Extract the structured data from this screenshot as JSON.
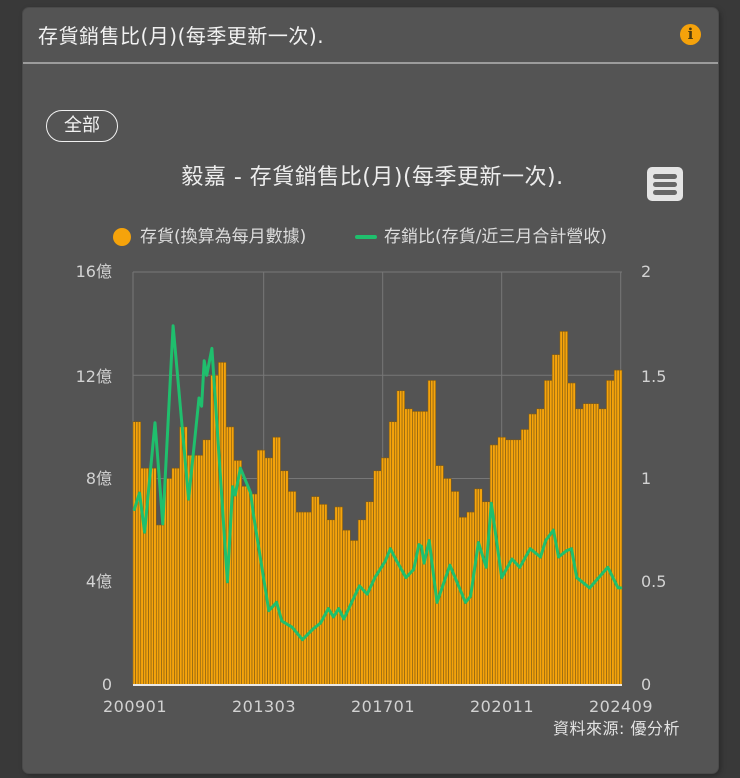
{
  "panel": {
    "title": "存貨銷售比(月)(每季更新一次).",
    "info_icon": "info-icon"
  },
  "filter": {
    "label": "全部"
  },
  "menu": {
    "icon": "hamburger-menu-icon"
  },
  "colors": {
    "panel_bg": "#545454",
    "page_bg": "#393939",
    "bar": "#f5a30b",
    "bar_edge": "#7d5a16",
    "line": "#1fbf6d",
    "info": "#f5a20b",
    "grid": "#777777",
    "axis": "#e8e8e8"
  },
  "source": "資料來源: 優分析",
  "chart_data": {
    "type": "bar+line",
    "title": "毅嘉 - 存貨銷售比(月)(每季更新一次).",
    "legend": [
      {
        "name": "存貨(換算為每月數據)",
        "marker": "circle",
        "color": "#f5a30b"
      },
      {
        "name": "存銷比(存貨/近三月合計營收)",
        "marker": "line",
        "color": "#1fbf6d"
      }
    ],
    "legend_position": "top",
    "x_start": "200901",
    "x_end": "202409",
    "x_ticks": [
      "200901",
      "201303",
      "201701",
      "202011",
      "202409"
    ],
    "y_left": {
      "range": [
        0,
        16
      ],
      "unit": "億",
      "ticks": [
        "16億",
        "12億",
        "8億",
        "4億",
        "0"
      ],
      "tick_values": [
        16,
        12,
        8,
        4,
        0
      ]
    },
    "y_right": {
      "range": [
        0,
        2
      ],
      "ticks": [
        "2",
        "1.5",
        "1",
        "0.5",
        "0"
      ],
      "tick_values": [
        2,
        1.5,
        1,
        0.5,
        0
      ]
    },
    "grid": true,
    "series": [
      {
        "name": "存貨(換算為每月數據)",
        "type": "bar",
        "axis": "left",
        "unit": "億",
        "frequency": "quarterly value repeated for each of 3 months",
        "quarters": [
          "2009Q1",
          "2009Q2",
          "2009Q3",
          "2009Q4",
          "2010Q1",
          "2010Q2",
          "2010Q3",
          "2010Q4",
          "2011Q1",
          "2011Q2",
          "2011Q3",
          "2011Q4",
          "2012Q1",
          "2012Q2",
          "2012Q3",
          "2012Q4",
          "2013Q1",
          "2013Q2",
          "2013Q3",
          "2013Q4",
          "2014Q1",
          "2014Q2",
          "2014Q3",
          "2014Q4",
          "2015Q1",
          "2015Q2",
          "2015Q3",
          "2015Q4",
          "2016Q1",
          "2016Q2",
          "2016Q3",
          "2016Q4",
          "2017Q1",
          "2017Q2",
          "2017Q3",
          "2017Q4",
          "2018Q1",
          "2018Q2",
          "2018Q3",
          "2018Q4",
          "2019Q1",
          "2019Q2",
          "2019Q3",
          "2019Q4",
          "2020Q1",
          "2020Q2",
          "2020Q3",
          "2020Q4",
          "2021Q1",
          "2021Q2",
          "2021Q3",
          "2021Q4",
          "2022Q1",
          "2022Q2",
          "2022Q3",
          "2022Q4",
          "2023Q1",
          "2023Q2",
          "2023Q3",
          "2023Q4",
          "2024Q1",
          "2024Q2",
          "2024Q3"
        ],
        "values": [
          10.2,
          8.4,
          8.4,
          6.2,
          8.0,
          8.4,
          10.0,
          8.9,
          8.9,
          9.5,
          12.0,
          12.5,
          10.0,
          8.7,
          7.7,
          7.4,
          9.1,
          8.8,
          9.6,
          8.3,
          7.5,
          6.7,
          6.7,
          7.3,
          7.0,
          6.4,
          6.9,
          6.0,
          5.6,
          6.4,
          7.1,
          8.3,
          8.8,
          10.2,
          11.4,
          10.7,
          10.6,
          10.6,
          11.8,
          8.5,
          8.0,
          7.5,
          6.5,
          6.7,
          7.6,
          7.1,
          9.3,
          9.6,
          9.5,
          9.5,
          9.9,
          10.5,
          10.7,
          11.8,
          12.8,
          13.7,
          11.7,
          10.7,
          10.9,
          10.9,
          10.7,
          11.8,
          12.2
        ]
      },
      {
        "name": "存銷比(存貨/近三月合計營收)",
        "type": "line",
        "axis": "right",
        "points": [
          {
            "x": "200901",
            "y": 0.85
          },
          {
            "x": "200903",
            "y": 0.93
          },
          {
            "x": "200905",
            "y": 0.74
          },
          {
            "x": "200909",
            "y": 1.27
          },
          {
            "x": "200912",
            "y": 0.78
          },
          {
            "x": "201004",
            "y": 1.74
          },
          {
            "x": "201010",
            "y": 0.9
          },
          {
            "x": "201102",
            "y": 1.39
          },
          {
            "x": "201103",
            "y": 1.35
          },
          {
            "x": "201104",
            "y": 1.57
          },
          {
            "x": "201105",
            "y": 1.5
          },
          {
            "x": "201107",
            "y": 1.63
          },
          {
            "x": "201201",
            "y": 0.5
          },
          {
            "x": "201203",
            "y": 0.96
          },
          {
            "x": "201204",
            "y": 0.92
          },
          {
            "x": "201206",
            "y": 1.05
          },
          {
            "x": "201210",
            "y": 0.93
          },
          {
            "x": "201211",
            "y": 0.83
          },
          {
            "x": "201305",
            "y": 0.36
          },
          {
            "x": "201308",
            "y": 0.4
          },
          {
            "x": "201310",
            "y": 0.31
          },
          {
            "x": "201402",
            "y": 0.28
          },
          {
            "x": "201406",
            "y": 0.22
          },
          {
            "x": "201410",
            "y": 0.27
          },
          {
            "x": "201501",
            "y": 0.3
          },
          {
            "x": "201504",
            "y": 0.37
          },
          {
            "x": "201506",
            "y": 0.33
          },
          {
            "x": "201508",
            "y": 0.37
          },
          {
            "x": "201510",
            "y": 0.32
          },
          {
            "x": "201604",
            "y": 0.48
          },
          {
            "x": "201607",
            "y": 0.44
          },
          {
            "x": "201610",
            "y": 0.52
          },
          {
            "x": "201702",
            "y": 0.6
          },
          {
            "x": "201704",
            "y": 0.66
          },
          {
            "x": "201706",
            "y": 0.61
          },
          {
            "x": "201710",
            "y": 0.52
          },
          {
            "x": "201801",
            "y": 0.56
          },
          {
            "x": "201803",
            "y": 0.68
          },
          {
            "x": "201804",
            "y": 0.67
          },
          {
            "x": "201805",
            "y": 0.59
          },
          {
            "x": "201807",
            "y": 0.7
          },
          {
            "x": "201810",
            "y": 0.4
          },
          {
            "x": "201903",
            "y": 0.58
          },
          {
            "x": "201909",
            "y": 0.4
          },
          {
            "x": "201911",
            "y": 0.43
          },
          {
            "x": "202002",
            "y": 0.69
          },
          {
            "x": "202005",
            "y": 0.57
          },
          {
            "x": "202007",
            "y": 0.88
          },
          {
            "x": "202011",
            "y": 0.52
          },
          {
            "x": "202103",
            "y": 0.61
          },
          {
            "x": "202106",
            "y": 0.57
          },
          {
            "x": "202110",
            "y": 0.66
          },
          {
            "x": "202202",
            "y": 0.62
          },
          {
            "x": "202204",
            "y": 0.7
          },
          {
            "x": "202207",
            "y": 0.75
          },
          {
            "x": "202209",
            "y": 0.62
          },
          {
            "x": "202212",
            "y": 0.65
          },
          {
            "x": "202302",
            "y": 0.66
          },
          {
            "x": "202304",
            "y": 0.52
          },
          {
            "x": "202309",
            "y": 0.47
          },
          {
            "x": "202404",
            "y": 0.57
          },
          {
            "x": "202408",
            "y": 0.47
          },
          {
            "x": "202409",
            "y": 0.47
          }
        ]
      }
    ]
  }
}
